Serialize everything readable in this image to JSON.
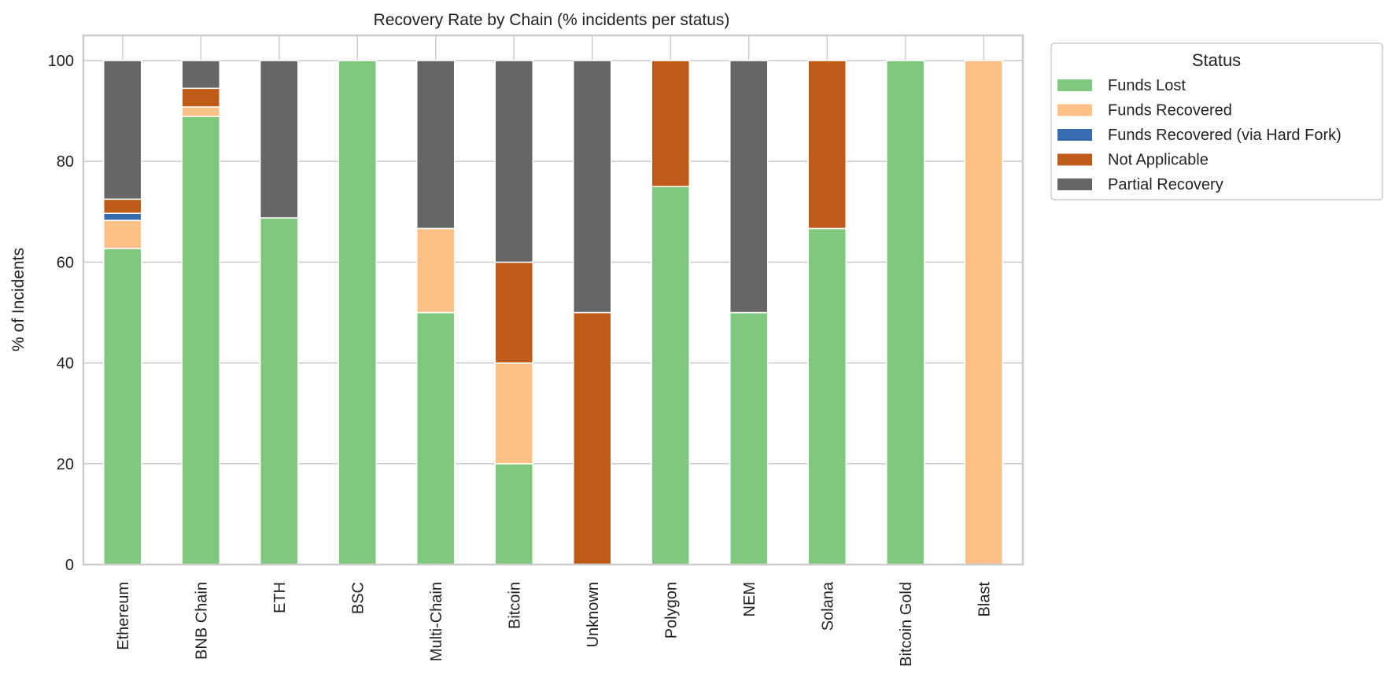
{
  "chart_data": {
    "type": "bar",
    "stacked": true,
    "title": "Recovery Rate by Chain (% incidents per status)",
    "xlabel": "",
    "ylabel": "% of Incidents",
    "ylim": [
      0,
      105
    ],
    "yticks": [
      0,
      20,
      40,
      60,
      80,
      100
    ],
    "grid": true,
    "legend": {
      "title": "Status",
      "placement": "outside top-right"
    },
    "categories": [
      "Ethereum",
      "BNB Chain",
      "ETH",
      "BSC",
      "Multi-Chain",
      "Bitcoin",
      "Unknown",
      "Polygon",
      "NEM",
      "Solana",
      "Bitcoin Gold",
      "Blast"
    ],
    "series": [
      {
        "name": "Funds Lost",
        "color": "#7fc97f",
        "values": [
          62.7,
          88.9,
          68.8,
          100,
          50,
          20,
          0,
          75,
          50,
          66.7,
          100,
          0
        ]
      },
      {
        "name": "Funds Recovered",
        "color": "#fdc086",
        "values": [
          5.6,
          1.9,
          0,
          0,
          16.7,
          20,
          0,
          0,
          0,
          0,
          0,
          100
        ]
      },
      {
        "name": "Funds Recovered (via Hard Fork)",
        "color": "#386cb0",
        "values": [
          1.4,
          0,
          0,
          0,
          0,
          0,
          0,
          0,
          0,
          0,
          0,
          0
        ]
      },
      {
        "name": "Not Applicable",
        "color": "#bf5b17",
        "values": [
          2.8,
          3.7,
          0,
          0,
          0,
          20,
          50,
          25,
          0,
          33.3,
          0,
          0
        ]
      },
      {
        "name": "Partial Recovery",
        "color": "#666666",
        "values": [
          27.5,
          5.5,
          31.2,
          0,
          33.3,
          40,
          50,
          0,
          50,
          0,
          0,
          0
        ]
      }
    ]
  }
}
